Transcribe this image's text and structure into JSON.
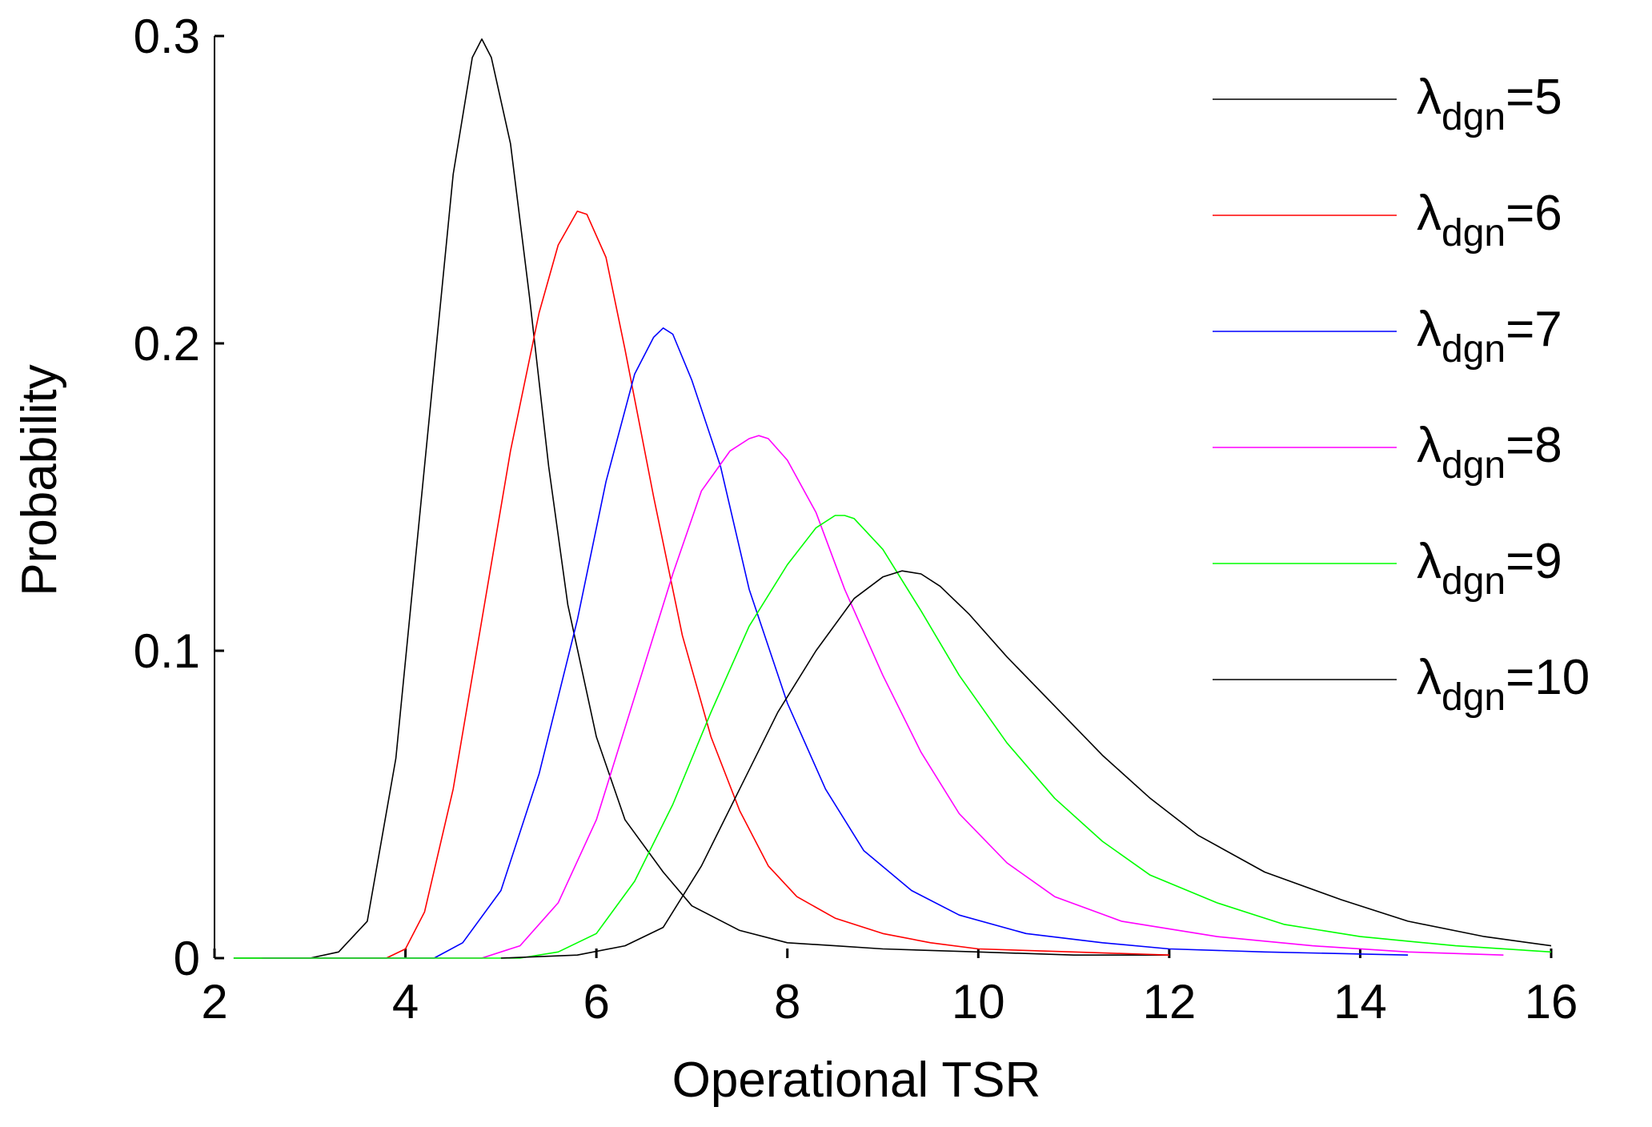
{
  "chart_data": {
    "type": "line",
    "title": "",
    "xlabel": "Operational TSR",
    "ylabel": "Probability",
    "xlim": [
      2,
      16
    ],
    "ylim": [
      0,
      0.3
    ],
    "xticks": [
      2,
      4,
      6,
      8,
      10,
      12,
      14,
      16
    ],
    "xtick_labels": [
      "2",
      "4",
      "6",
      "8",
      "10",
      "12",
      "14",
      "16"
    ],
    "yticks": [
      0,
      0.1,
      0.2,
      0.3
    ],
    "ytick_labels": [
      "0",
      "0.1",
      "0.2",
      "0.3"
    ],
    "grid": false,
    "legend_position": "right",
    "series": [
      {
        "name": "λdgn=5",
        "label_main": "λ",
        "label_sub": "dgn",
        "label_suffix": "=5",
        "color": "#000000",
        "x": [
          2.2,
          3.0,
          3.3,
          3.6,
          3.9,
          4.2,
          4.5,
          4.7,
          4.8,
          4.9,
          5.1,
          5.3,
          5.5,
          5.7,
          6.0,
          6.3,
          6.7,
          7.0,
          7.5,
          8.0,
          8.5,
          9.0,
          10.0,
          11.0,
          12.0
        ],
        "y": [
          0,
          0,
          0.002,
          0.012,
          0.065,
          0.16,
          0.255,
          0.293,
          0.299,
          0.293,
          0.265,
          0.215,
          0.16,
          0.115,
          0.072,
          0.045,
          0.028,
          0.017,
          0.009,
          0.005,
          0.004,
          0.003,
          0.002,
          0.001,
          0.001
        ]
      },
      {
        "name": "λdgn=6",
        "label_main": "λ",
        "label_sub": "dgn",
        "label_suffix": "=6",
        "color": "#ff0000",
        "x": [
          2.5,
          3.8,
          4.0,
          4.2,
          4.5,
          4.8,
          5.1,
          5.4,
          5.6,
          5.8,
          5.9,
          6.1,
          6.3,
          6.6,
          6.9,
          7.2,
          7.5,
          7.8,
          8.1,
          8.5,
          9.0,
          9.5,
          10.0,
          11.0,
          12.0
        ],
        "y": [
          0,
          0,
          0.003,
          0.015,
          0.055,
          0.11,
          0.165,
          0.21,
          0.232,
          0.243,
          0.242,
          0.228,
          0.198,
          0.15,
          0.105,
          0.072,
          0.048,
          0.03,
          0.02,
          0.013,
          0.008,
          0.005,
          0.003,
          0.002,
          0.001
        ]
      },
      {
        "name": "λdgn=7",
        "label_main": "λ",
        "label_sub": "dgn",
        "label_suffix": "=7",
        "color": "#0000ff",
        "x": [
          2.5,
          4.3,
          4.6,
          5.0,
          5.4,
          5.8,
          6.1,
          6.4,
          6.6,
          6.7,
          6.8,
          7.0,
          7.3,
          7.6,
          8.0,
          8.4,
          8.8,
          9.3,
          9.8,
          10.5,
          11.3,
          12.0,
          13.0,
          14.5
        ],
        "y": [
          0,
          0,
          0.005,
          0.022,
          0.06,
          0.11,
          0.155,
          0.19,
          0.202,
          0.205,
          0.203,
          0.188,
          0.16,
          0.12,
          0.083,
          0.055,
          0.035,
          0.022,
          0.014,
          0.008,
          0.005,
          0.003,
          0.002,
          0.001
        ]
      },
      {
        "name": "λdgn=8",
        "label_main": "λ",
        "label_sub": "dgn",
        "label_suffix": "=8",
        "color": "#ff00ff",
        "x": [
          2.5,
          4.8,
          5.2,
          5.6,
          6.0,
          6.4,
          6.8,
          7.1,
          7.4,
          7.6,
          7.7,
          7.8,
          8.0,
          8.3,
          8.6,
          9.0,
          9.4,
          9.8,
          10.3,
          10.8,
          11.5,
          12.5,
          13.5,
          14.5,
          15.5
        ],
        "y": [
          0,
          0,
          0.004,
          0.018,
          0.045,
          0.085,
          0.125,
          0.152,
          0.165,
          0.169,
          0.17,
          0.169,
          0.162,
          0.145,
          0.12,
          0.092,
          0.067,
          0.047,
          0.031,
          0.02,
          0.012,
          0.007,
          0.004,
          0.002,
          0.001
        ]
      },
      {
        "name": "λdgn=9",
        "label_main": "λ",
        "label_sub": "dgn",
        "label_suffix": "=9",
        "color": "#00ff00",
        "x": [
          2.2,
          5.2,
          5.6,
          6.0,
          6.4,
          6.8,
          7.2,
          7.6,
          8.0,
          8.3,
          8.5,
          8.6,
          8.7,
          9.0,
          9.4,
          9.8,
          10.3,
          10.8,
          11.3,
          11.8,
          12.5,
          13.2,
          14.0,
          15.0,
          16.0
        ],
        "y": [
          0,
          0,
          0.002,
          0.008,
          0.025,
          0.05,
          0.08,
          0.108,
          0.128,
          0.14,
          0.144,
          0.144,
          0.143,
          0.133,
          0.113,
          0.092,
          0.07,
          0.052,
          0.038,
          0.027,
          0.018,
          0.011,
          0.007,
          0.004,
          0.002
        ]
      },
      {
        "name": "λdgn=10",
        "label_main": "λ",
        "label_sub": "dgn",
        "label_suffix": "=10",
        "color": "#000000",
        "x": [
          5.0,
          5.8,
          6.3,
          6.7,
          7.1,
          7.5,
          7.9,
          8.3,
          8.7,
          9.0,
          9.2,
          9.4,
          9.6,
          9.9,
          10.3,
          10.8,
          11.3,
          11.8,
          12.3,
          13.0,
          13.8,
          14.5,
          15.3,
          16.0
        ],
        "y": [
          0,
          0.001,
          0.004,
          0.01,
          0.03,
          0.055,
          0.08,
          0.1,
          0.117,
          0.124,
          0.126,
          0.125,
          0.121,
          0.112,
          0.098,
          0.082,
          0.066,
          0.052,
          0.04,
          0.028,
          0.019,
          0.012,
          0.007,
          0.004
        ]
      }
    ]
  }
}
